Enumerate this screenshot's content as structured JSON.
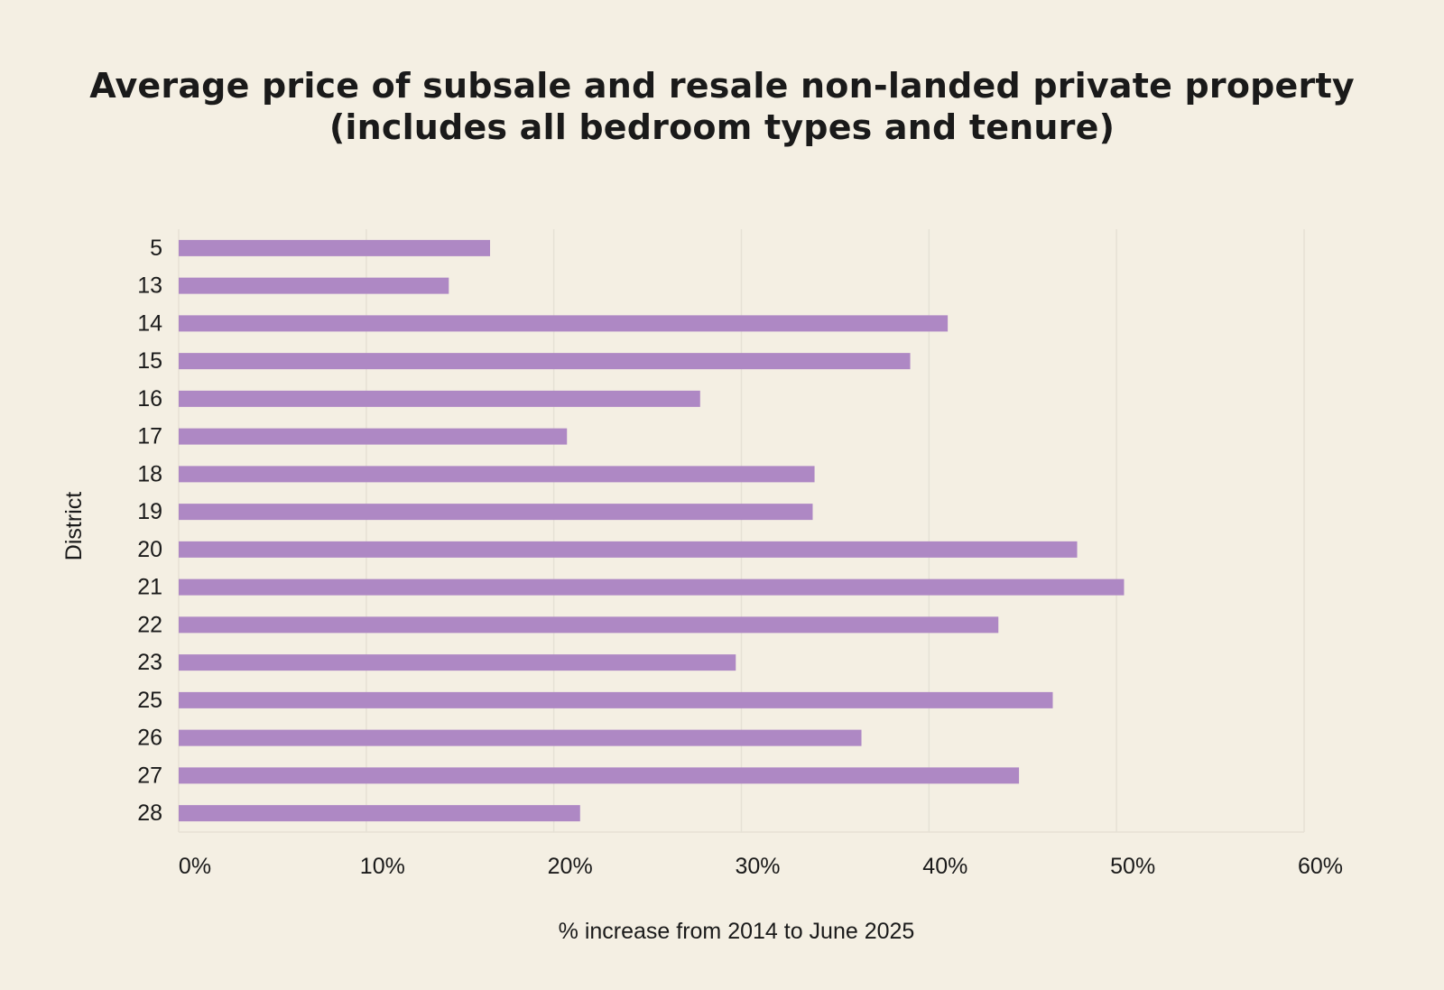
{
  "chart_data": {
    "type": "bar",
    "orientation": "horizontal",
    "title_lines": [
      "Average price of subsale and resale non-landed private property",
      "(includes all bedroom types and tenure)"
    ],
    "xlabel": "% increase from 2014 to June 2025",
    "ylabel": "District",
    "categories": [
      "5",
      "13",
      "14",
      "15",
      "16",
      "17",
      "18",
      "19",
      "20",
      "21",
      "22",
      "23",
      "25",
      "26",
      "27",
      "28"
    ],
    "values": [
      16.6,
      14.4,
      41.0,
      39.0,
      27.8,
      20.7,
      33.9,
      33.8,
      47.9,
      50.4,
      43.7,
      29.7,
      46.6,
      36.4,
      44.8,
      21.4
    ],
    "xlim": [
      0,
      60
    ],
    "x_ticks": [
      0,
      10,
      20,
      30,
      40,
      50,
      60
    ],
    "x_tick_labels": [
      "0%",
      "10%",
      "20%",
      "30%",
      "40%",
      "50%",
      "60%"
    ],
    "grid": "vertical",
    "legend": "none",
    "bar_color": "#ae88c4",
    "grid_color": "#e6e1d5",
    "background_color": "#f4efe3"
  }
}
